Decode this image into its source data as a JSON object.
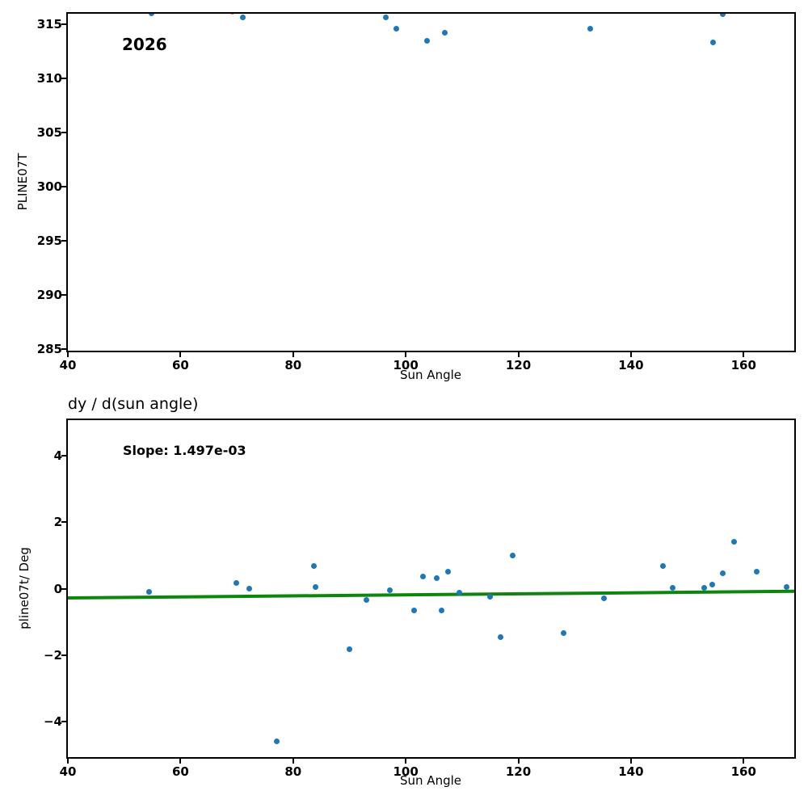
{
  "colors": {
    "point": "#1f77b4",
    "outlier_point": "#ff7f0e",
    "fit_line": "#0e860e",
    "text": "#000000",
    "background": "#ffffff"
  },
  "chart_data": [
    {
      "type": "scatter",
      "title": "",
      "annotation": "2026",
      "xlabel": "Sun Angle",
      "ylabel": "PLINE07T",
      "xlim": [
        40,
        169
      ],
      "ylim": [
        284.85,
        315.97
      ],
      "grid": false,
      "legend": null,
      "xticks": [
        {
          "v": 40,
          "label": "40"
        },
        {
          "v": 60,
          "label": "60"
        },
        {
          "v": 80,
          "label": "80"
        },
        {
          "v": 100,
          "label": "100"
        },
        {
          "v": 120,
          "label": "120"
        },
        {
          "v": 140,
          "label": "140"
        },
        {
          "v": 160,
          "label": "160"
        }
      ],
      "yticks": [
        {
          "v": 285,
          "label": "285"
        },
        {
          "v": 290,
          "label": "290"
        },
        {
          "v": 295,
          "label": "295"
        },
        {
          "v": 300,
          "label": "300"
        },
        {
          "v": 305,
          "label": "305"
        },
        {
          "v": 310,
          "label": "310"
        },
        {
          "v": 315,
          "label": "315"
        }
      ],
      "series": [
        {
          "name": "pline07t-points",
          "color": "#1f77b4",
          "points": [
            [
              54.9,
              316.0
            ],
            [
              71.0,
              315.65
            ],
            [
              96.4,
              315.6
            ],
            [
              98.35,
              314.6
            ],
            [
              103.85,
              313.45
            ],
            [
              106.9,
              314.25
            ],
            [
              132.8,
              314.6
            ],
            [
              154.6,
              313.3
            ],
            [
              156.3,
              315.95
            ]
          ]
        },
        {
          "name": "clipped-orange-point",
          "color": "#ff7f0e",
          "points": [
            [
              69.2,
              316.15
            ]
          ]
        }
      ]
    },
    {
      "type": "scatter",
      "title": "dy / d(sun angle)",
      "annotation": "Slope: 1.497e-03",
      "slope": 0.001497,
      "xlabel": "Sun Angle",
      "ylabel": "pline07t/ Deg",
      "xlim": [
        40,
        169
      ],
      "ylim": [
        -5.06,
        5.06
      ],
      "grid": false,
      "legend": null,
      "xticks": [
        {
          "v": 40,
          "label": "40"
        },
        {
          "v": 60,
          "label": "60"
        },
        {
          "v": 80,
          "label": "80"
        },
        {
          "v": 100,
          "label": "100"
        },
        {
          "v": 120,
          "label": "120"
        },
        {
          "v": 140,
          "label": "140"
        },
        {
          "v": 160,
          "label": "160"
        }
      ],
      "yticks": [
        {
          "v": 4,
          "label": "4"
        },
        {
          "v": 2,
          "label": "2"
        },
        {
          "v": 0,
          "label": "0"
        },
        {
          "v": -2,
          "label": "−2"
        },
        {
          "v": -4,
          "label": "−4"
        }
      ],
      "series": [
        {
          "name": "derivative-points",
          "color": "#1f77b4",
          "points": [
            [
              54.35,
              -0.09
            ],
            [
              69.85,
              0.17
            ],
            [
              72.2,
              0.01
            ],
            [
              77.07,
              -4.58
            ],
            [
              83.7,
              0.67
            ],
            [
              84.05,
              0.04
            ],
            [
              90.03,
              -1.81
            ],
            [
              92.99,
              -0.35
            ],
            [
              97.15,
              -0.05
            ],
            [
              101.45,
              -0.65
            ],
            [
              103.03,
              0.37
            ],
            [
              105.53,
              0.31
            ],
            [
              106.39,
              -0.65
            ],
            [
              107.48,
              0.52
            ],
            [
              109.55,
              -0.12
            ],
            [
              115.0,
              -0.24
            ],
            [
              116.77,
              -1.45
            ],
            [
              119.06,
              0.99
            ],
            [
              128.06,
              -1.33
            ],
            [
              135.23,
              -0.3
            ],
            [
              145.75,
              0.68
            ],
            [
              147.43,
              0.03
            ],
            [
              153.07,
              0.03
            ],
            [
              154.5,
              0.13
            ],
            [
              156.33,
              0.47
            ],
            [
              158.28,
              1.4
            ],
            [
              162.35,
              0.51
            ],
            [
              167.6,
              0.04
            ]
          ]
        }
      ],
      "fit_line": {
        "name": "trend-line",
        "color": "#0e860e",
        "x": [
          40,
          169
        ],
        "y": [
          -0.28,
          -0.08
        ]
      }
    }
  ]
}
